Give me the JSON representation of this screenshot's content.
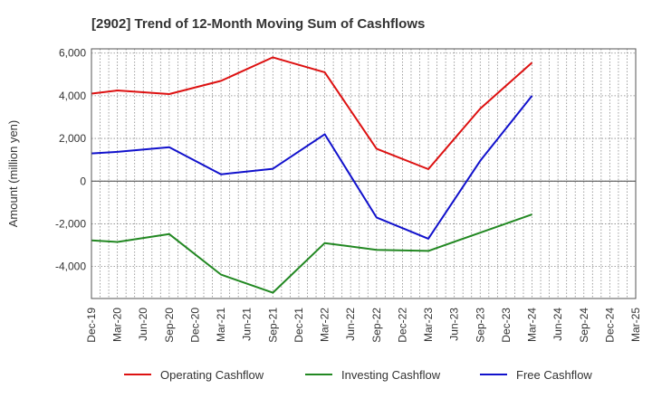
{
  "chart_data": {
    "type": "line",
    "title": "[2902]  Trend of 12-Month Moving Sum of Cashflows",
    "ylabel": "Amount (million yen)",
    "xlabel": "",
    "categories": [
      "Dec-19",
      "Mar-20",
      "Jun-20",
      "Sep-20",
      "Dec-20",
      "Mar-21",
      "Jun-21",
      "Sep-21",
      "Dec-21",
      "Mar-22",
      "Jun-22",
      "Sep-22",
      "Dec-22",
      "Mar-23",
      "Jun-23",
      "Sep-23",
      "Dec-23",
      "Mar-24",
      "Jun-24",
      "Sep-24",
      "Dec-24",
      "Mar-25"
    ],
    "ylim": [
      -5500,
      6200
    ],
    "yticks": [
      6000,
      4000,
      2000,
      0,
      -2000,
      -4000
    ],
    "ytick_labels": [
      "6,000",
      "4,000",
      "2,000",
      "0",
      "-2,000",
      "-4,000"
    ],
    "grid": true,
    "legend_position": "bottom",
    "series": [
      {
        "name": "Operating Cashflow",
        "color": "#dd1111",
        "values": [
          4100,
          4250,
          null,
          4080,
          null,
          4700,
          null,
          5800,
          null,
          5100,
          null,
          1520,
          null,
          560,
          null,
          3400,
          null,
          5550,
          null,
          null,
          null,
          null
        ]
      },
      {
        "name": "Investing Cashflow",
        "color": "#228822",
        "values": [
          -2780,
          -2850,
          null,
          -2480,
          null,
          -4380,
          null,
          -5230,
          null,
          -2900,
          null,
          -3220,
          null,
          -3270,
          null,
          null,
          null,
          -1560,
          null,
          null,
          null,
          null
        ]
      },
      {
        "name": "Free Cashflow",
        "color": "#1111cc",
        "values": [
          1300,
          1370,
          null,
          1590,
          null,
          320,
          null,
          580,
          null,
          2200,
          null,
          -1700,
          null,
          -2700,
          null,
          950,
          null,
          4000,
          null,
          null,
          null,
          null
        ]
      }
    ]
  }
}
